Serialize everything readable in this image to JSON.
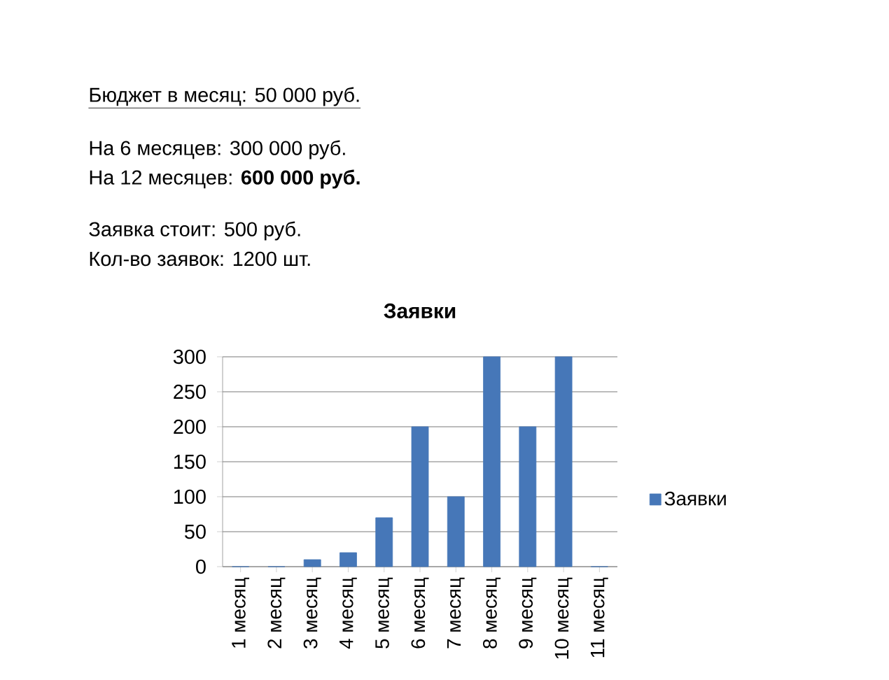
{
  "chart_data": {
    "type": "bar",
    "title": "Заявки",
    "annotations": [
      "Бюджет в месяц: 50 000 руб.",
      "На 6 месяцев: 300 000 руб.",
      "На 12 месяцев: **600 000 руб.**",
      "Заявка стоит: 500 руб.",
      "Кол-во заявок: 1200 шт."
    ],
    "categories": [
      "1 месяц",
      "2 месяц",
      "3 месяц",
      "4 месяц",
      "5 месяц",
      "6 месяц",
      "7 месяц",
      "8 месяц",
      "9 месяц",
      "10 месяц",
      "11 месяц"
    ],
    "series": [
      {
        "name": "Заявки",
        "color": "#4677b8",
        "values": [
          0,
          0,
          10,
          20,
          70,
          200,
          100,
          300,
          200,
          300,
          0
        ]
      }
    ],
    "ylim": [
      0,
      300
    ],
    "yticks": [
      0,
      50,
      100,
      150,
      200,
      250,
      300
    ],
    "grid": "y",
    "legend": "right"
  }
}
